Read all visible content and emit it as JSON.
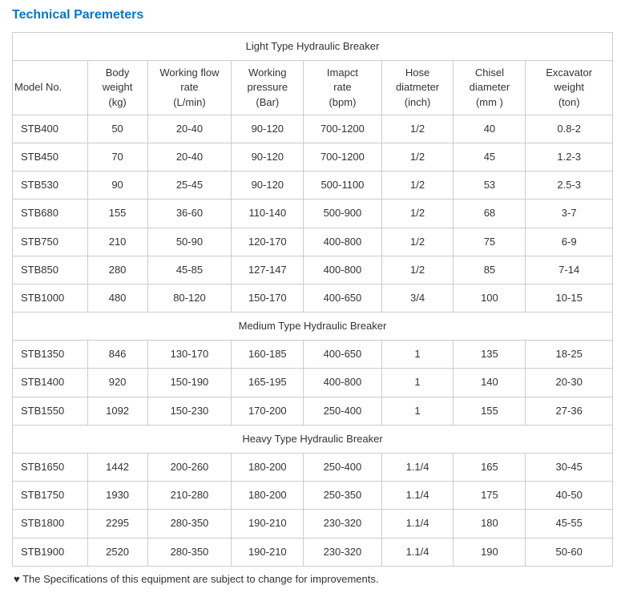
{
  "title": "Technical Paremeters",
  "columns": [
    "Model No.",
    "Body weight (kg)",
    "Working flow rate (L/min)",
    "Working pressure (Bar)",
    "Imapct rate (bpm)",
    "Hose diatmeter (inch)",
    "Chisel diameter (mm )",
    "Excavator weight (ton)"
  ],
  "sections": [
    {
      "title": "Light Type Hydraulic Breaker",
      "rows": [
        [
          "STB400",
          "50",
          "20-40",
          "90-120",
          "700-1200",
          "1/2",
          "40",
          "0.8-2"
        ],
        [
          "STB450",
          "70",
          "20-40",
          "90-120",
          "700-1200",
          "1/2",
          "45",
          "1.2-3"
        ],
        [
          "STB530",
          "90",
          "25-45",
          "90-120",
          "500-1100",
          "1/2",
          "53",
          "2.5-3"
        ],
        [
          "STB680",
          "155",
          "36-60",
          "110-140",
          "500-900",
          "1/2",
          "68",
          "3-7"
        ],
        [
          "STB750",
          "210",
          "50-90",
          "120-170",
          "400-800",
          "1/2",
          "75",
          "6-9"
        ],
        [
          "STB850",
          "280",
          "45-85",
          "127-147",
          "400-800",
          "1/2",
          "85",
          "7-14"
        ],
        [
          "STB1000",
          "480",
          "80-120",
          "150-170",
          "400-650",
          "3/4",
          "100",
          "10-15"
        ]
      ]
    },
    {
      "title": "Medium Type Hydraulic Breaker",
      "rows": [
        [
          "STB1350",
          "846",
          "130-170",
          "160-185",
          "400-650",
          "1",
          "135",
          "18-25"
        ],
        [
          "STB1400",
          "920",
          "150-190",
          "165-195",
          "400-800",
          "1",
          "140",
          "20-30"
        ],
        [
          "STB1550",
          "1092",
          "150-230",
          "170-200",
          "250-400",
          "1",
          "155",
          "27-36"
        ]
      ]
    },
    {
      "title": "Heavy Type Hydraulic Breaker",
      "rows": [
        [
          "STB1650",
          "1442",
          "200-260",
          "180-200",
          "250-400",
          "1.1/4",
          "165",
          "30-45"
        ],
        [
          "STB1750",
          "1930",
          "210-280",
          "180-200",
          "250-350",
          "1.1/4",
          "175",
          "40-50"
        ],
        [
          "STB1800",
          "2295",
          "280-350",
          "190-210",
          "230-320",
          "1.1/4",
          "180",
          "45-55"
        ],
        [
          "STB1900",
          "2520",
          "280-350",
          "190-210",
          "230-320",
          "1.1/4",
          "190",
          "50-60"
        ]
      ]
    }
  ],
  "footnote": "♥ The Specifications of this equipment are subject to change for improvements.",
  "col_widths": [
    "12.5%",
    "10%",
    "14%",
    "12%",
    "13%",
    "12%",
    "12%",
    "14.5%"
  ]
}
